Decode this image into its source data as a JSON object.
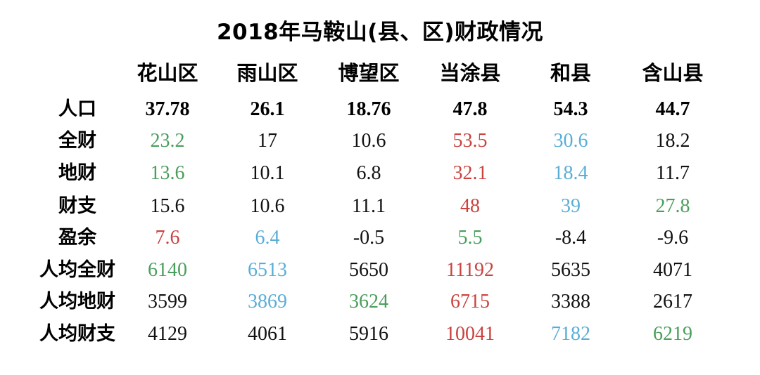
{
  "title": "2018年马鞍山(县、区)财政情况",
  "colors": {
    "green": "#4a9e5c",
    "red": "#c9433f",
    "blue": "#5aaed6",
    "black": "#111111"
  },
  "table": {
    "columns": [
      "花山区",
      "雨山区",
      "博望区",
      "当涂县",
      "和县",
      "含山县"
    ],
    "rows": [
      {
        "label": "人口",
        "values": [
          "37.78",
          "26.1",
          "18.76",
          "47.8",
          "54.3",
          "44.7"
        ]
      },
      {
        "label": "全财",
        "values": [
          "23.2",
          "17",
          "10.6",
          "53.5",
          "30.6",
          "18.2"
        ]
      },
      {
        "label": "地财",
        "values": [
          "13.6",
          "10.1",
          "6.8",
          "32.1",
          "18.4",
          "11.7"
        ]
      },
      {
        "label": "财支",
        "values": [
          "15.6",
          "10.6",
          "11.1",
          "48",
          "39",
          "27.8"
        ]
      },
      {
        "label": "盈余",
        "values": [
          "7.6",
          "6.4",
          "-0.5",
          "5.5",
          "-8.4",
          "-9.6"
        ]
      },
      {
        "label": "人均全财",
        "values": [
          "6140",
          "6513",
          "5650",
          "11192",
          "5635",
          "4071"
        ]
      },
      {
        "label": "人均地财",
        "values": [
          "3599",
          "3869",
          "3624",
          "6715",
          "3388",
          "2617"
        ]
      },
      {
        "label": "人均财支",
        "values": [
          "4129",
          "4061",
          "5916",
          "10041",
          "7182",
          "6219"
        ]
      }
    ]
  }
}
